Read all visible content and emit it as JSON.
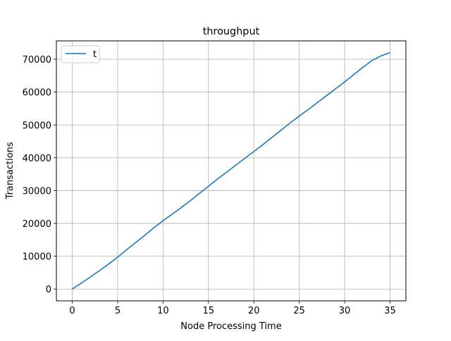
{
  "chart_data": {
    "type": "line",
    "title": "throughput",
    "xlabel": "Node Processing Time",
    "ylabel": "Transactions",
    "xlim": [
      -1.75,
      36.75
    ],
    "ylim": [
      -3600,
      75600
    ],
    "xticks": [
      0,
      5,
      10,
      15,
      20,
      25,
      30,
      35
    ],
    "xtick_labels": [
      "0",
      "5",
      "10",
      "15",
      "20",
      "25",
      "30",
      "35"
    ],
    "yticks": [
      0,
      10000,
      20000,
      30000,
      40000,
      50000,
      60000,
      70000
    ],
    "ytick_labels": [
      "0",
      "10000",
      "20000",
      "30000",
      "40000",
      "50000",
      "60000",
      "70000"
    ],
    "grid": true,
    "legend_position": "top-left",
    "series": [
      {
        "name": "t",
        "color": "#1f77b4",
        "x": [
          0,
          1,
          2,
          3,
          4,
          5,
          6,
          7,
          8,
          9,
          10,
          11,
          12,
          13,
          14,
          15,
          16,
          17,
          18,
          19,
          20,
          21,
          22,
          23,
          24,
          25,
          26,
          27,
          28,
          29,
          30,
          31,
          32,
          33,
          34,
          35
        ],
        "y": [
          0,
          1800,
          3700,
          5600,
          7600,
          9700,
          12000,
          14200,
          16400,
          18700,
          20800,
          22800,
          24800,
          26900,
          29100,
          31300,
          33500,
          35600,
          37700,
          39800,
          41900,
          44000,
          46200,
          48400,
          50600,
          52700,
          54700,
          56800,
          58900,
          61000,
          63100,
          65300,
          67500,
          69600,
          71000,
          72000
        ]
      }
    ]
  }
}
